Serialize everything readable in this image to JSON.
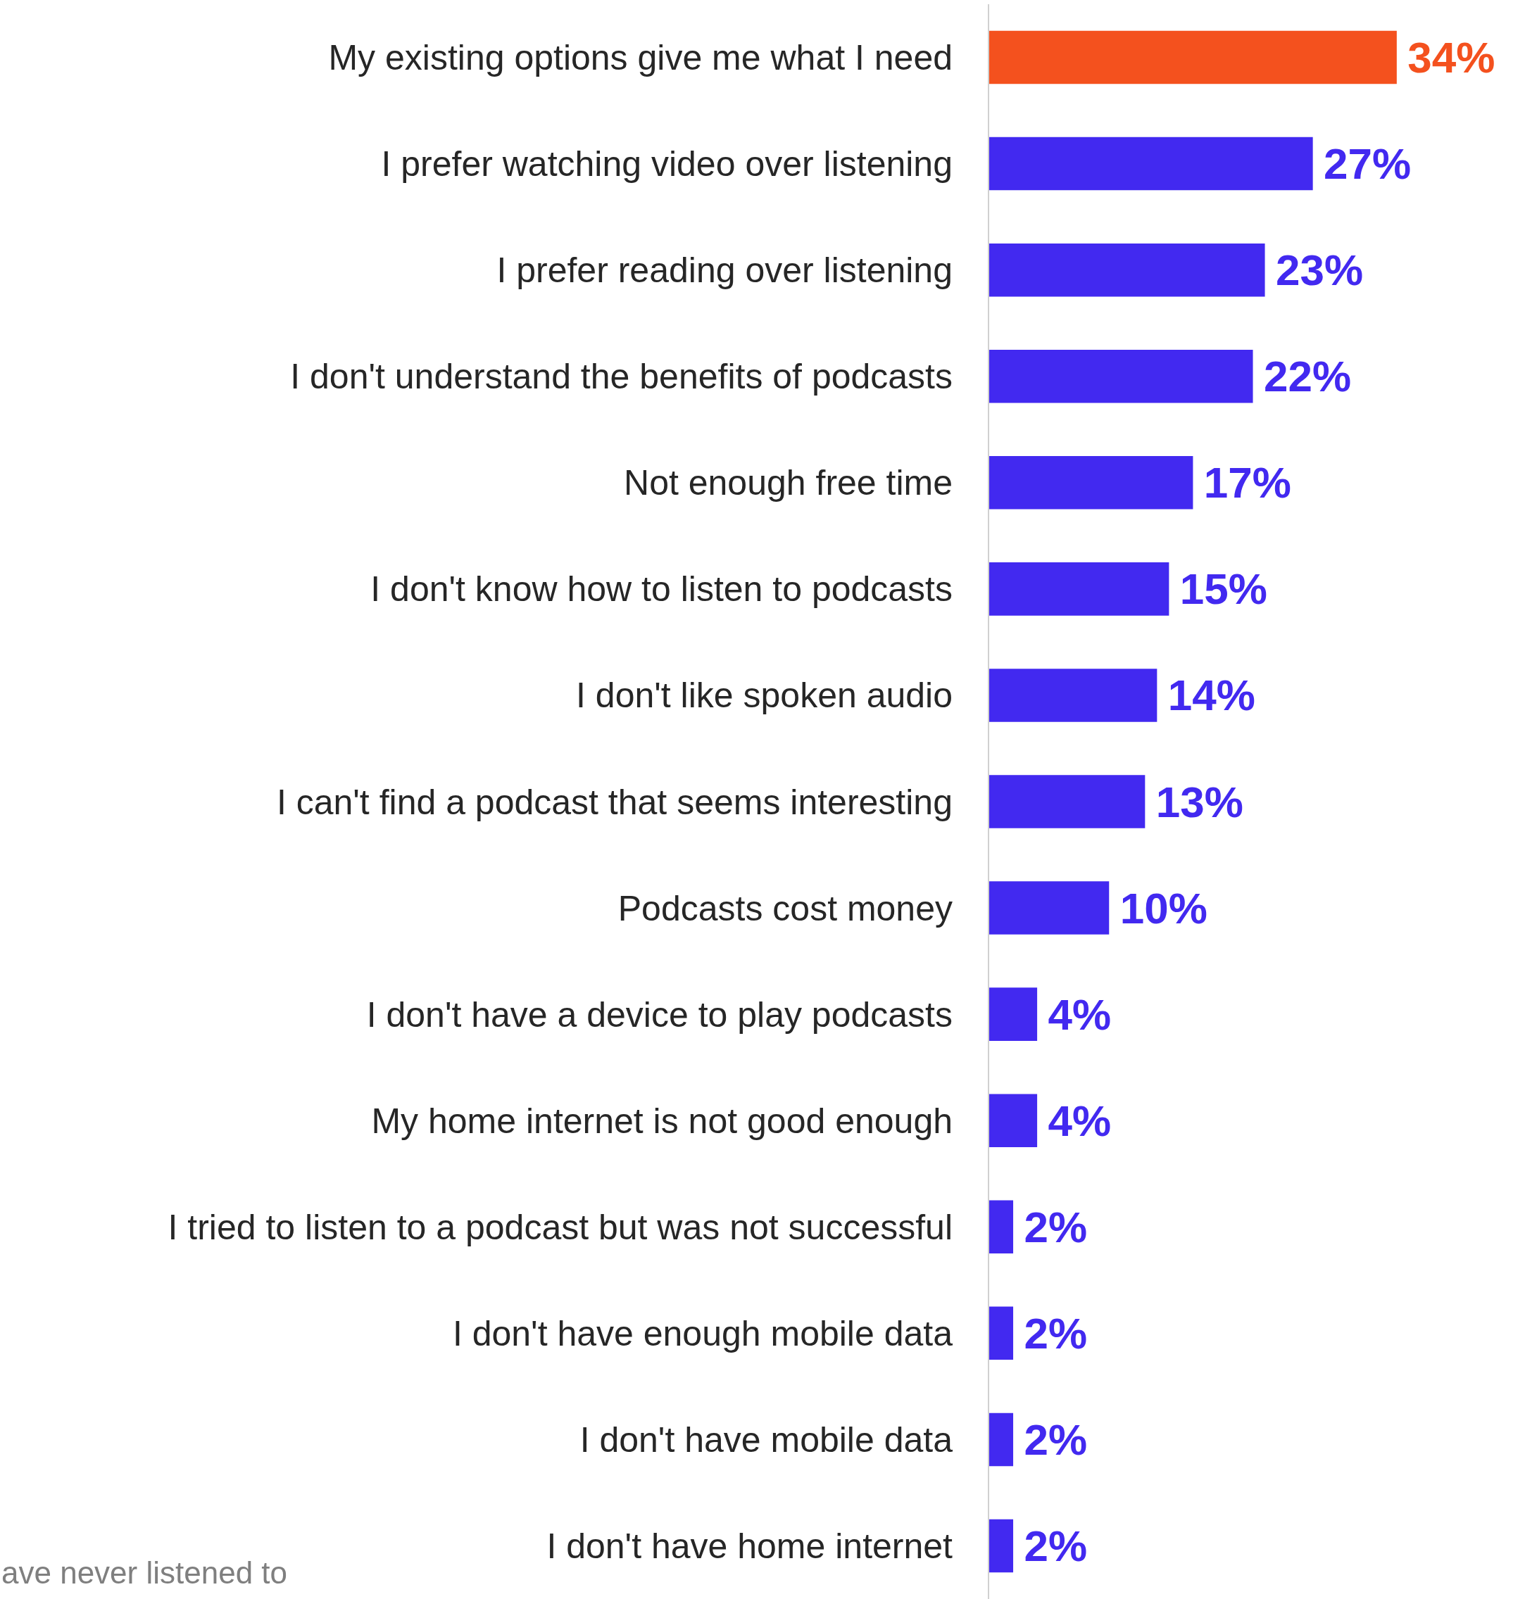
{
  "chart_data": {
    "type": "bar",
    "orientation": "horizontal",
    "categories": [
      "My existing options give me what I need",
      "I prefer watching video over listening",
      "I prefer reading over listening",
      "I don't understand the benefits of podcasts",
      "Not enough free time",
      "I don't know how to listen to podcasts",
      "I don't like spoken audio",
      "I can't find a podcast that seems interesting",
      "Podcasts cost money",
      "I don't have a device to play podcasts",
      "My home internet is not good enough",
      "I tried to listen to a podcast but was not successful",
      "I don't have enough mobile data",
      "I don't have mobile data",
      "I don't have home internet"
    ],
    "values": [
      34,
      27,
      23,
      22,
      17,
      15,
      14,
      13,
      10,
      4,
      4,
      2,
      2,
      2,
      2
    ],
    "colors": [
      "#f4511e",
      "#4229f0",
      "#4229f0",
      "#4229f0",
      "#4229f0",
      "#4229f0",
      "#4229f0",
      "#4229f0",
      "#4229f0",
      "#4229f0",
      "#4229f0",
      "#4229f0",
      "#4229f0",
      "#4229f0",
      "#4229f0"
    ],
    "value_labels": [
      "34%",
      "27%",
      "23%",
      "22%",
      "17%",
      "15%",
      "14%",
      "13%",
      "10%",
      "4%",
      "4%",
      "2%",
      "2%",
      "2%",
      "2%"
    ],
    "xlim": [
      0,
      44.7
    ],
    "tick_labels": "y",
    "annotations": [
      "ave never listened to"
    ]
  }
}
